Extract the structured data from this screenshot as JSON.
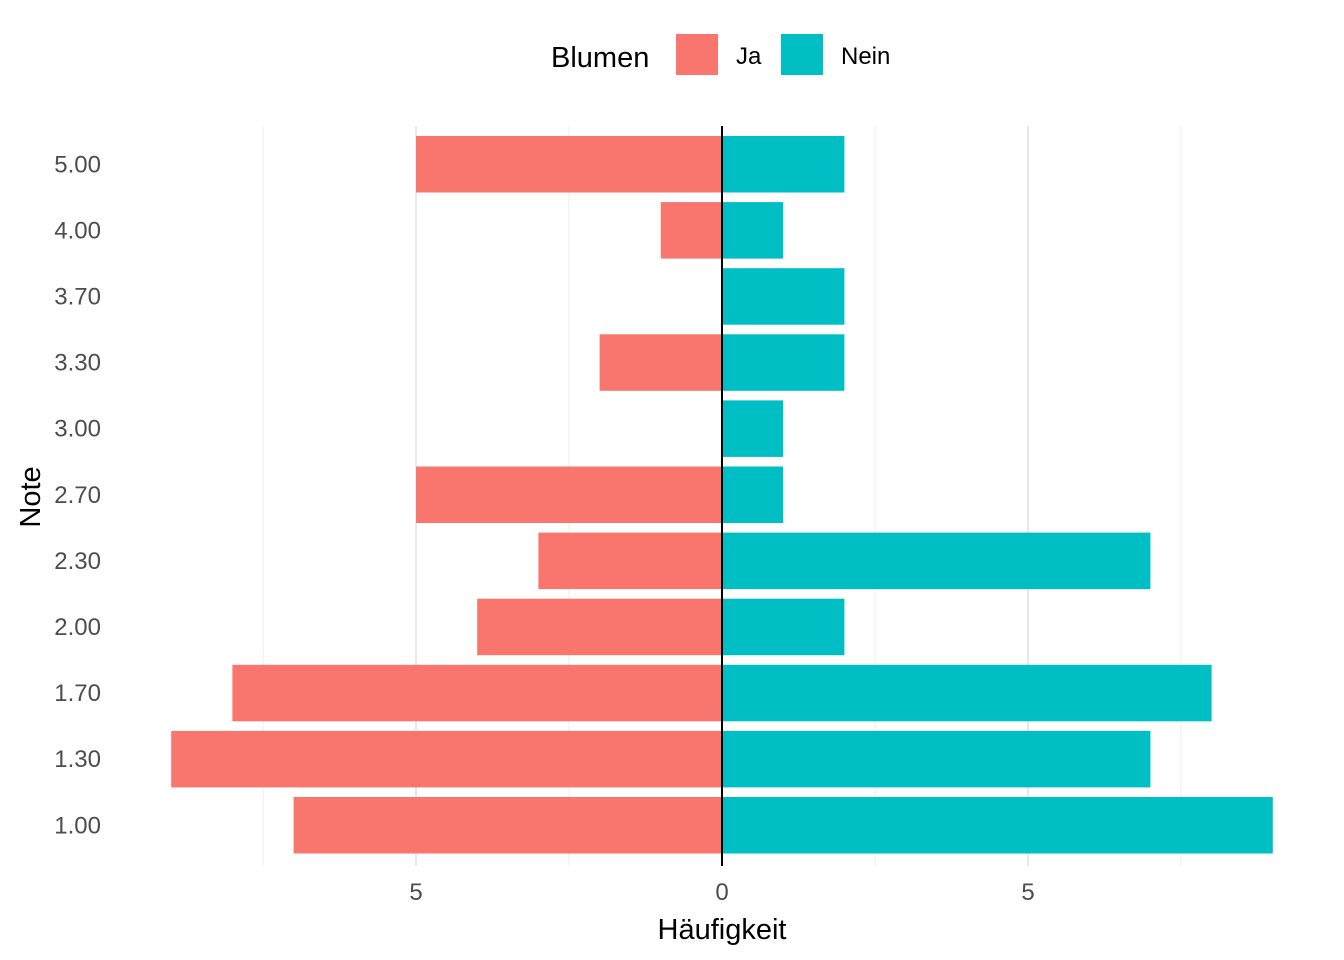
{
  "chart_data": {
    "type": "bar",
    "orientation": "horizontal-diverging",
    "categories": [
      "1.00",
      "1.30",
      "1.70",
      "2.00",
      "2.30",
      "2.70",
      "3.00",
      "3.30",
      "3.70",
      "4.00",
      "5.00"
    ],
    "series": [
      {
        "name": "Ja",
        "color": "#F8766D",
        "values": [
          7,
          9,
          8,
          4,
          3,
          5,
          0,
          2,
          0,
          1,
          5
        ],
        "side": "negative"
      },
      {
        "name": "Nein",
        "color": "#00BFC4",
        "values": [
          9,
          7,
          8,
          2,
          7,
          1,
          1,
          2,
          2,
          1,
          2
        ],
        "side": "positive"
      }
    ],
    "xlabel": "Häufigkeit",
    "ylabel": "Note",
    "xlim": [
      -9,
      9
    ],
    "x_ticks": [
      {
        "value": -5,
        "label": "5"
      },
      {
        "value": 0,
        "label": "0"
      },
      {
        "value": 5,
        "label": "5"
      }
    ],
    "legend": {
      "title": "Blumen",
      "placement": "top"
    },
    "grid": true,
    "zero_line": true
  }
}
